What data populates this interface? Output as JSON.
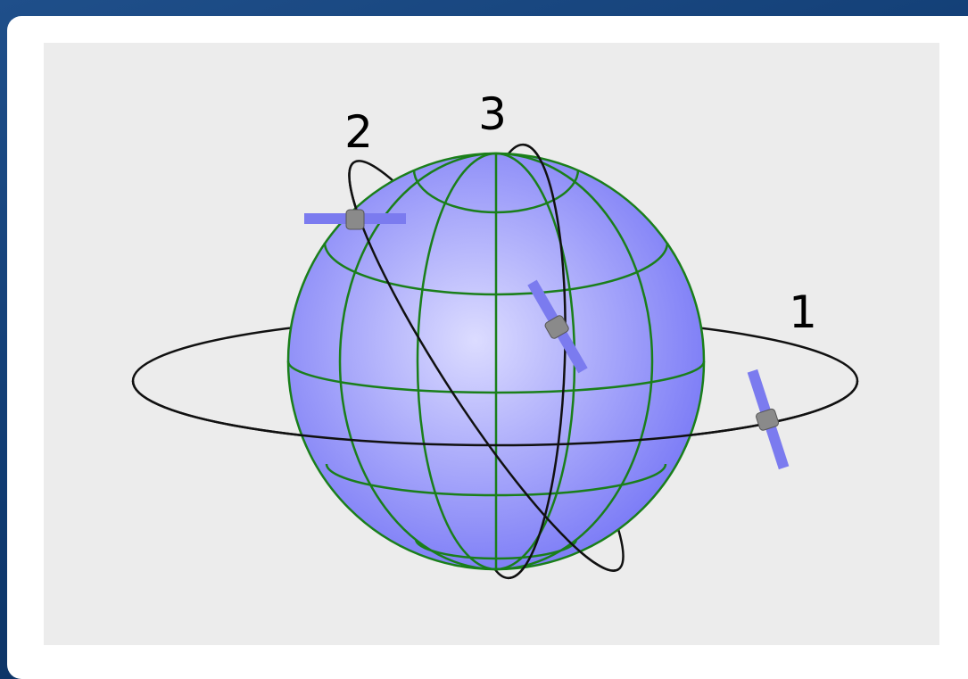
{
  "orbits": [
    {
      "label": "1"
    },
    {
      "label": "2"
    },
    {
      "label": "3"
    }
  ]
}
